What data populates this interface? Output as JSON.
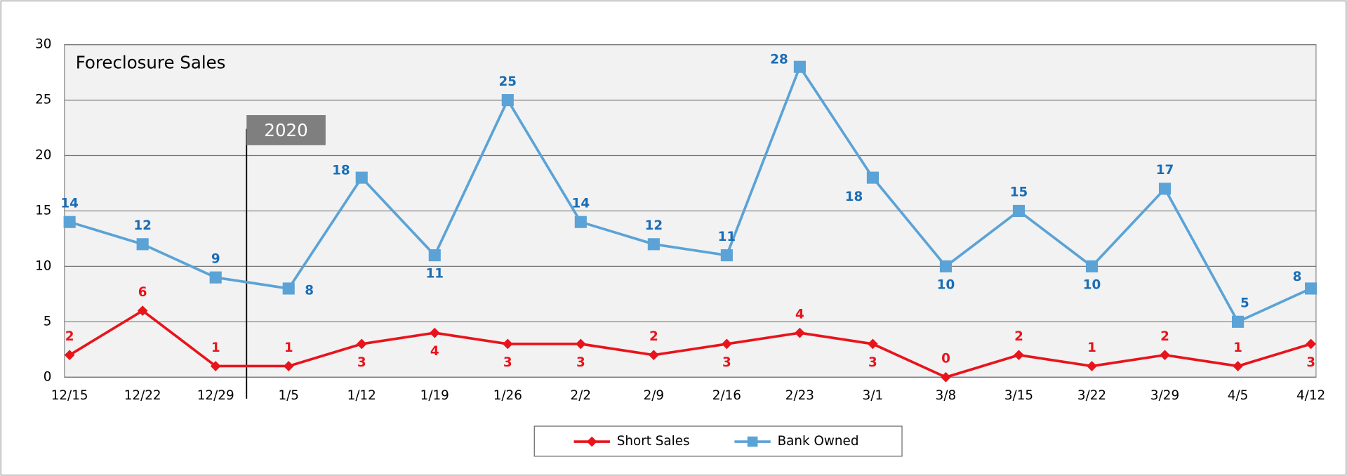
{
  "chart_data": {
    "type": "line",
    "title": "Foreclosure Sales",
    "annotation": "2020",
    "categories": [
      "12/15",
      "12/22",
      "12/29",
      "1/5",
      "1/12",
      "1/19",
      "1/26",
      "2/2",
      "2/9",
      "2/16",
      "2/23",
      "3/1",
      "3/8",
      "3/15",
      "3/22",
      "3/29",
      "4/5",
      "4/12"
    ],
    "series": [
      {
        "name": "Short Sales",
        "color": "#e8141c",
        "marker": "diamond",
        "values": [
          2,
          6,
          1,
          1,
          3,
          4,
          3,
          3,
          2,
          3,
          4,
          3,
          0,
          2,
          1,
          2,
          1,
          3
        ]
      },
      {
        "name": "Bank Owned",
        "color": "#5ba3d6",
        "label_color": "#1a6db5",
        "marker": "square",
        "values": [
          14,
          12,
          9,
          8,
          18,
          11,
          25,
          14,
          12,
          11,
          28,
          18,
          10,
          15,
          10,
          17,
          5,
          8
        ]
      }
    ],
    "ylim": [
      0,
      30
    ],
    "yticks": [
      0,
      5,
      10,
      15,
      20,
      25,
      30
    ],
    "grid": true,
    "legend": "bottom"
  }
}
